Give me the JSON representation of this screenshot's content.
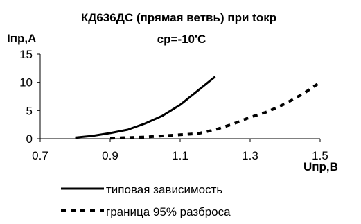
{
  "chart_data": {
    "type": "line",
    "title_line1": "КД636ДС (прямая ветвь) при tокр",
    "title_line2": "ср=-10'С",
    "ylabel": "Iпр,А",
    "xlabel": "Uпр,В",
    "xlim": [
      0.7,
      1.5
    ],
    "ylim": [
      0,
      15
    ],
    "x_ticks": [
      "0.7",
      "0.9",
      "1.1",
      "1.3",
      "1.5"
    ],
    "y_ticks": [
      "0",
      "5",
      "10",
      "15"
    ],
    "grid": false,
    "legend_position": "bottom",
    "series": [
      {
        "name": "типовая зависимость",
        "style": "solid",
        "color": "#000000",
        "x": [
          0.8,
          0.85,
          0.9,
          0.95,
          1.0,
          1.05,
          1.1,
          1.15,
          1.2
        ],
        "y": [
          0.2,
          0.5,
          1.0,
          1.6,
          2.7,
          4.1,
          6.0,
          8.5,
          11.0
        ]
      },
      {
        "name": "граница 95% разброса",
        "style": "dashed",
        "color": "#000000",
        "x": [
          0.9,
          1.0,
          1.1,
          1.15,
          1.2,
          1.25,
          1.3,
          1.35,
          1.4,
          1.45,
          1.5
        ],
        "y": [
          0.1,
          0.3,
          0.7,
          0.9,
          1.6,
          2.6,
          3.8,
          4.8,
          6.2,
          7.9,
          10.0
        ]
      }
    ]
  }
}
